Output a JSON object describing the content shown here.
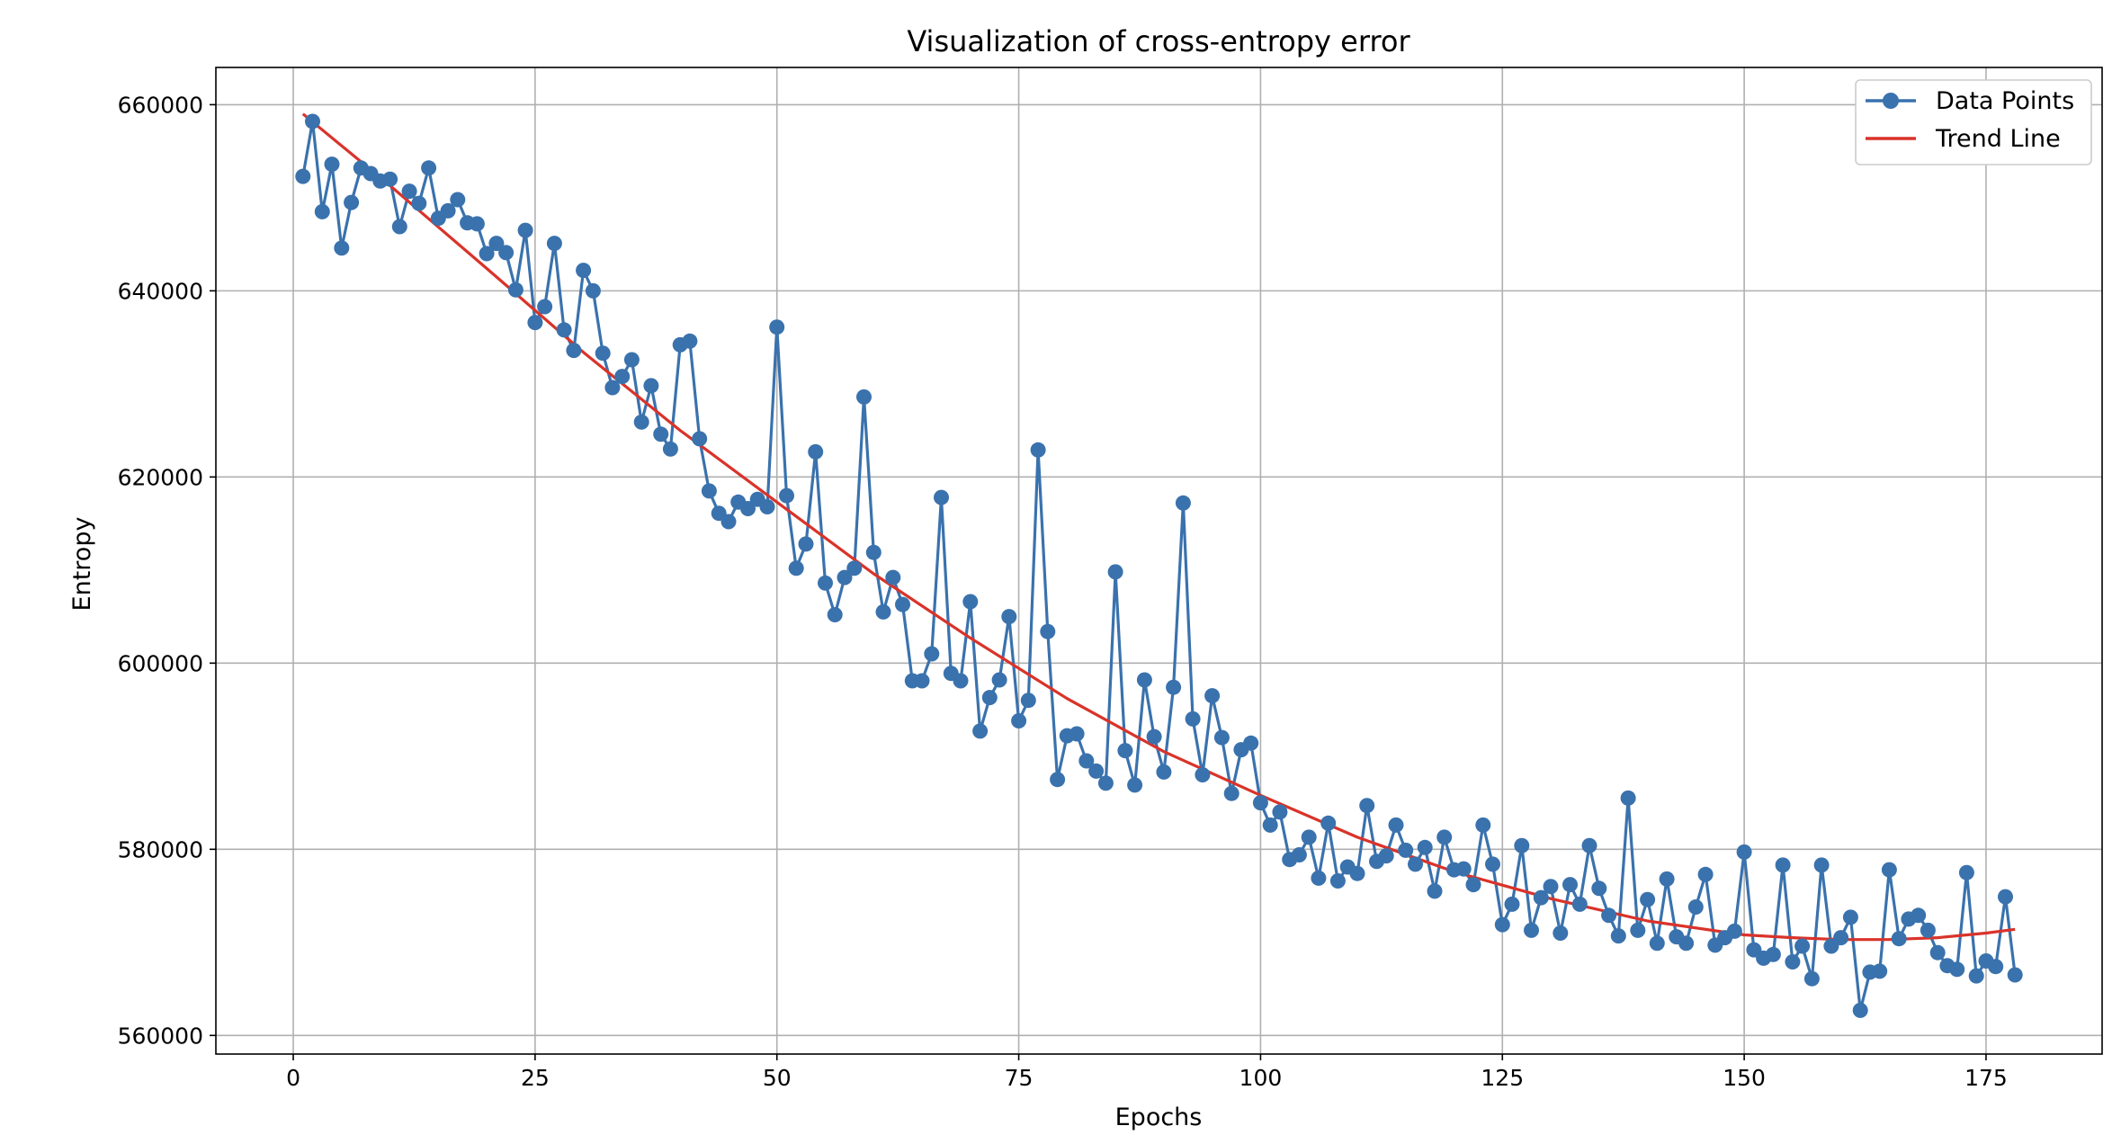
{
  "chart_data": {
    "type": "line",
    "title": "Visualization of cross-entropy error",
    "xlabel": "Epochs",
    "ylabel": "Entropy",
    "xlim": [
      -8,
      187
    ],
    "ylim": [
      558000,
      664000
    ],
    "xticks": [
      0,
      25,
      50,
      75,
      100,
      125,
      150,
      175
    ],
    "yticks": [
      560000,
      580000,
      600000,
      620000,
      640000,
      660000
    ],
    "grid": true,
    "legend_position": "top-right",
    "colors": {
      "data": "#3a72ad",
      "trend": "#d9332a",
      "grid": "#b0b0b0",
      "frame": "#000000"
    },
    "series": [
      {
        "name": "Data Points",
        "marker": "circle",
        "x": [
          1,
          2,
          3,
          4,
          5,
          6,
          7,
          8,
          9,
          10,
          11,
          12,
          13,
          14,
          15,
          16,
          17,
          18,
          19,
          20,
          21,
          22,
          23,
          24,
          25,
          26,
          27,
          28,
          29,
          30,
          31,
          32,
          33,
          34,
          35,
          36,
          37,
          38,
          39,
          40,
          41,
          42,
          43,
          44,
          45,
          46,
          47,
          48,
          49,
          50,
          51,
          52,
          53,
          54,
          55,
          56,
          57,
          58,
          59,
          60,
          61,
          62,
          63,
          64,
          65,
          66,
          67,
          68,
          69,
          70,
          71,
          72,
          73,
          74,
          75,
          76,
          77,
          78,
          79,
          80,
          81,
          82,
          83,
          84,
          85,
          86,
          87,
          88,
          89,
          90,
          91,
          92,
          93,
          94,
          95,
          96,
          97,
          98,
          99,
          100,
          101,
          102,
          103,
          104,
          105,
          106,
          107,
          108,
          109,
          110,
          111,
          112,
          113,
          114,
          115,
          116,
          117,
          118,
          119,
          120,
          121,
          122,
          123,
          124,
          125,
          126,
          127,
          128,
          129,
          130,
          131,
          132,
          133,
          134,
          135,
          136,
          137,
          138,
          139,
          140,
          141,
          142,
          143,
          144,
          145,
          146,
          147,
          148,
          149,
          150,
          151,
          152,
          153,
          154,
          155,
          156,
          157,
          158,
          159,
          160,
          161,
          162,
          163,
          164,
          165,
          166,
          167,
          168,
          169,
          170,
          171,
          172,
          173,
          174,
          175,
          176,
          177,
          178
        ],
        "y": [
          652300,
          658200,
          648500,
          653600,
          644600,
          649500,
          653200,
          652600,
          651800,
          652000,
          646900,
          650700,
          649400,
          653200,
          647800,
          648600,
          649800,
          647300,
          647200,
          644000,
          645100,
          644100,
          640100,
          646500,
          636600,
          638300,
          645100,
          635800,
          633600,
          642200,
          640000,
          633300,
          629600,
          630800,
          632600,
          625900,
          629800,
          624600,
          623000,
          634200,
          634600,
          624100,
          618500,
          616100,
          615200,
          617300,
          616600,
          617600,
          616800,
          636100,
          618000,
          610200,
          612800,
          622700,
          608600,
          605200,
          609200,
          610200,
          628600,
          611900,
          605500,
          609200,
          606300,
          598100,
          598100,
          601000,
          617800,
          598900,
          598100,
          606600,
          592700,
          596300,
          598200,
          605000,
          593800,
          596000,
          622900,
          603400,
          587500,
          592200,
          592400,
          589500,
          588400,
          587100,
          609800,
          590600,
          586900,
          598200,
          592100,
          588300,
          597400,
          617200,
          594000,
          588000,
          596500,
          592000,
          586000,
          590700,
          591400,
          585000,
          582600,
          584000,
          578900,
          579400,
          581300,
          576900,
          582800,
          576600,
          578100,
          577400,
          584700,
          578700,
          579300,
          582600,
          579900,
          578400,
          580200,
          575500,
          581300,
          577800,
          577900,
          576200,
          582600,
          578400,
          571900,
          574100,
          580400,
          571300,
          574800,
          576000,
          571000,
          576200,
          574100,
          580400,
          575800,
          572900,
          570700,
          585500,
          571300,
          574600,
          569900,
          576800,
          570600,
          569900,
          573800,
          577300,
          569700,
          570500,
          571200,
          579700,
          569200,
          568300,
          568700,
          578300,
          567900,
          569600,
          566100,
          578300,
          569600,
          570500,
          572700,
          562700,
          566800,
          566900,
          577800,
          570400,
          572500,
          572900,
          571300,
          568900,
          567500,
          567100,
          577500,
          566400,
          568000,
          567400,
          574900,
          566500
        ]
      },
      {
        "name": "Trend Line",
        "x": [
          1,
          10,
          20,
          30,
          40,
          50,
          60,
          70,
          80,
          90,
          100,
          110,
          120,
          130,
          140,
          150,
          155,
          160,
          165,
          170,
          175,
          178
        ],
        "y": [
          659000,
          651300,
          642400,
          633400,
          625000,
          617300,
          609600,
          602700,
          596200,
          590500,
          585800,
          581300,
          577600,
          574700,
          572300,
          570800,
          570500,
          570300,
          570300,
          570500,
          571000,
          571400
        ]
      }
    ]
  }
}
